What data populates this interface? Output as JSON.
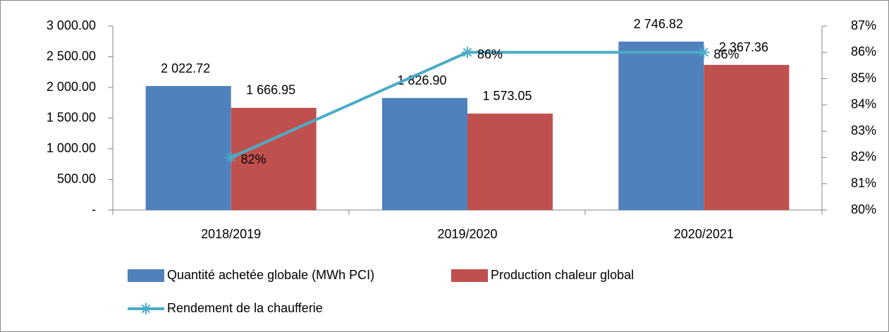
{
  "chart_data": {
    "type": "bar",
    "categories": [
      "2018/2019",
      "2019/2020",
      "2020/2021"
    ],
    "series": [
      {
        "name": "Quantité achetée globale (MWh PCI)",
        "color": "#4f81bd",
        "values": [
          2022.72,
          1826.9,
          2746.82
        ],
        "value_labels": [
          "2 022.72",
          "1 826.90",
          "2 746.82"
        ]
      },
      {
        "name": "Production chaleur global",
        "color": "#c0504d",
        "values": [
          1666.95,
          1573.05,
          2367.36
        ],
        "value_labels": [
          "1 666.95",
          "1 573.05",
          "2 367.36"
        ]
      },
      {
        "name": "Rendement de la chaufferie",
        "color": "#4bacc6",
        "type": "line",
        "axis": "y2",
        "values": [
          82,
          86,
          86
        ],
        "value_labels": [
          "82%",
          "86%",
          "86%"
        ]
      }
    ],
    "ylim": [
      0,
      3000
    ],
    "yticks": [
      {
        "value": 0,
        "label": "-"
      },
      {
        "value": 500,
        "label": "500.00"
      },
      {
        "value": 1000,
        "label": "1 000.00"
      },
      {
        "value": 1500,
        "label": "1 500.00"
      },
      {
        "value": 2000,
        "label": "2 000.00"
      },
      {
        "value": 2500,
        "label": "2 500.00"
      },
      {
        "value": 3000,
        "label": "3 000.00"
      }
    ],
    "y2lim": [
      80,
      87
    ],
    "y2ticks": [
      {
        "value": 80,
        "label": "80%"
      },
      {
        "value": 81,
        "label": "81%"
      },
      {
        "value": 82,
        "label": "82%"
      },
      {
        "value": 83,
        "label": "83%"
      },
      {
        "value": 84,
        "label": "84%"
      },
      {
        "value": 85,
        "label": "85%"
      },
      {
        "value": 86,
        "label": "86%"
      },
      {
        "value": 87,
        "label": "87%"
      }
    ],
    "grid": false
  }
}
